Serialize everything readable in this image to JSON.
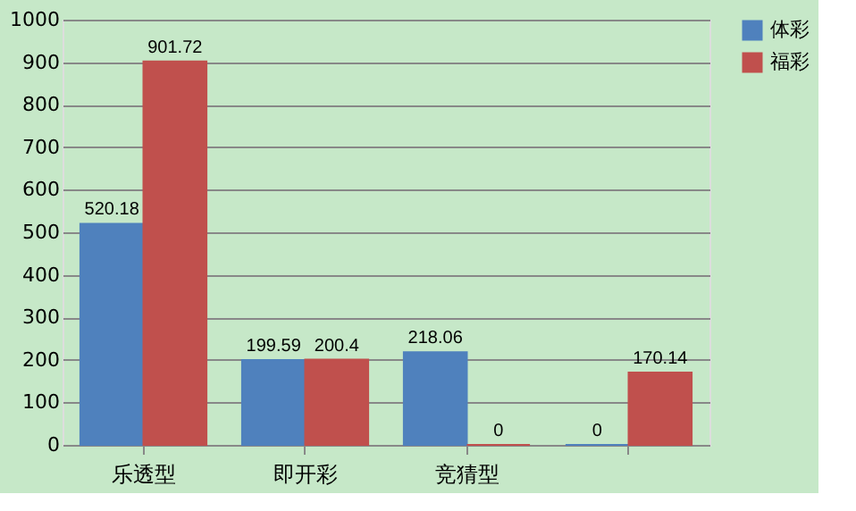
{
  "chart_data": {
    "type": "bar",
    "categories": [
      "乐透型",
      "即开彩",
      "竞猜型",
      null
    ],
    "series": [
      {
        "name": "体彩",
        "color": "#4f81bd",
        "values": [
          520.18,
          199.59,
          218.06,
          0
        ]
      },
      {
        "name": "福彩",
        "color": "#c0504d",
        "values": [
          901.72,
          200.4,
          0,
          170.14
        ]
      }
    ],
    "ylim": [
      0,
      1000
    ],
    "yticks": [
      0,
      100,
      200,
      300,
      400,
      500,
      600,
      700,
      800,
      900,
      1000
    ],
    "grid": "y",
    "legend": "right",
    "data_labels": true
  }
}
